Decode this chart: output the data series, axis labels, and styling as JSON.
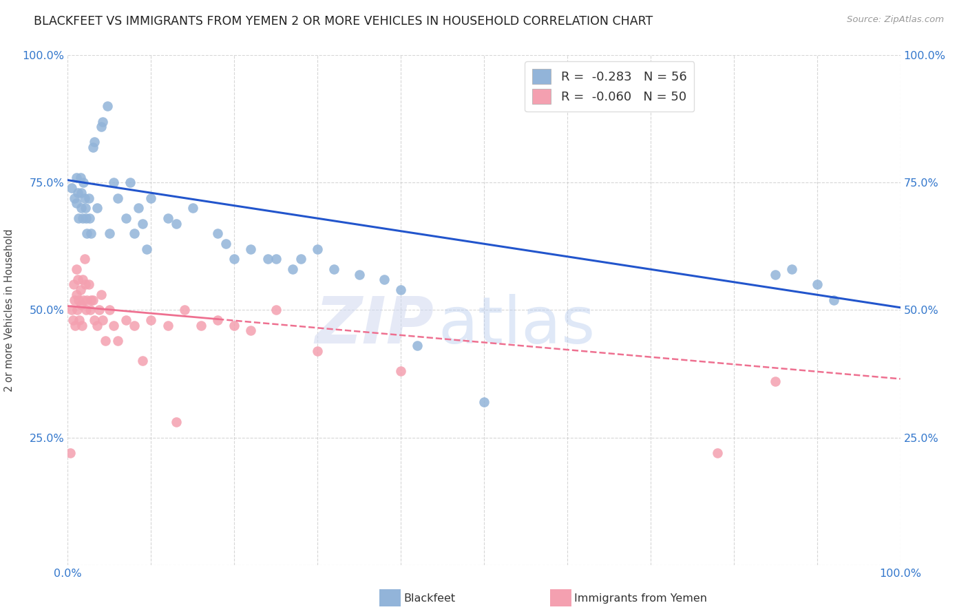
{
  "title": "BLACKFEET VS IMMIGRANTS FROM YEMEN 2 OR MORE VEHICLES IN HOUSEHOLD CORRELATION CHART",
  "source": "Source: ZipAtlas.com",
  "ylabel": "2 or more Vehicles in Household",
  "blue_R": -0.283,
  "blue_N": 56,
  "pink_R": -0.06,
  "pink_N": 50,
  "blue_color": "#92B4D9",
  "pink_color": "#F4A0B0",
  "blue_line_color": "#2255CC",
  "pink_line_color": "#EE7090",
  "blue_x": [
    0.005,
    0.008,
    0.01,
    0.01,
    0.012,
    0.013,
    0.015,
    0.016,
    0.016,
    0.018,
    0.019,
    0.02,
    0.021,
    0.022,
    0.023,
    0.025,
    0.026,
    0.028,
    0.03,
    0.032,
    0.035,
    0.04,
    0.042,
    0.048,
    0.05,
    0.055,
    0.06,
    0.07,
    0.075,
    0.08,
    0.085,
    0.09,
    0.095,
    0.1,
    0.12,
    0.13,
    0.15,
    0.18,
    0.19,
    0.2,
    0.22,
    0.24,
    0.25,
    0.27,
    0.28,
    0.3,
    0.32,
    0.35,
    0.38,
    0.4,
    0.42,
    0.5,
    0.85,
    0.87,
    0.9,
    0.92
  ],
  "blue_y": [
    0.74,
    0.72,
    0.76,
    0.71,
    0.73,
    0.68,
    0.76,
    0.73,
    0.7,
    0.68,
    0.75,
    0.72,
    0.7,
    0.68,
    0.65,
    0.72,
    0.68,
    0.65,
    0.82,
    0.83,
    0.7,
    0.86,
    0.87,
    0.9,
    0.65,
    0.75,
    0.72,
    0.68,
    0.75,
    0.65,
    0.7,
    0.67,
    0.62,
    0.72,
    0.68,
    0.67,
    0.7,
    0.65,
    0.63,
    0.6,
    0.62,
    0.6,
    0.6,
    0.58,
    0.6,
    0.62,
    0.58,
    0.57,
    0.56,
    0.54,
    0.43,
    0.32,
    0.57,
    0.58,
    0.55,
    0.52
  ],
  "pink_x": [
    0.003,
    0.005,
    0.006,
    0.007,
    0.008,
    0.009,
    0.01,
    0.01,
    0.011,
    0.012,
    0.013,
    0.014,
    0.015,
    0.016,
    0.017,
    0.018,
    0.019,
    0.02,
    0.021,
    0.022,
    0.023,
    0.025,
    0.027,
    0.028,
    0.03,
    0.032,
    0.035,
    0.038,
    0.04,
    0.042,
    0.045,
    0.05,
    0.055,
    0.06,
    0.07,
    0.08,
    0.09,
    0.1,
    0.12,
    0.13,
    0.14,
    0.16,
    0.18,
    0.2,
    0.22,
    0.25,
    0.3,
    0.4,
    0.78,
    0.85
  ],
  "pink_y": [
    0.22,
    0.5,
    0.48,
    0.55,
    0.52,
    0.47,
    0.58,
    0.53,
    0.5,
    0.56,
    0.52,
    0.48,
    0.54,
    0.51,
    0.47,
    0.56,
    0.52,
    0.6,
    0.55,
    0.5,
    0.52,
    0.55,
    0.5,
    0.52,
    0.52,
    0.48,
    0.47,
    0.5,
    0.53,
    0.48,
    0.44,
    0.5,
    0.47,
    0.44,
    0.48,
    0.47,
    0.4,
    0.48,
    0.47,
    0.28,
    0.5,
    0.47,
    0.48,
    0.47,
    0.46,
    0.5,
    0.42,
    0.38,
    0.22,
    0.36
  ]
}
